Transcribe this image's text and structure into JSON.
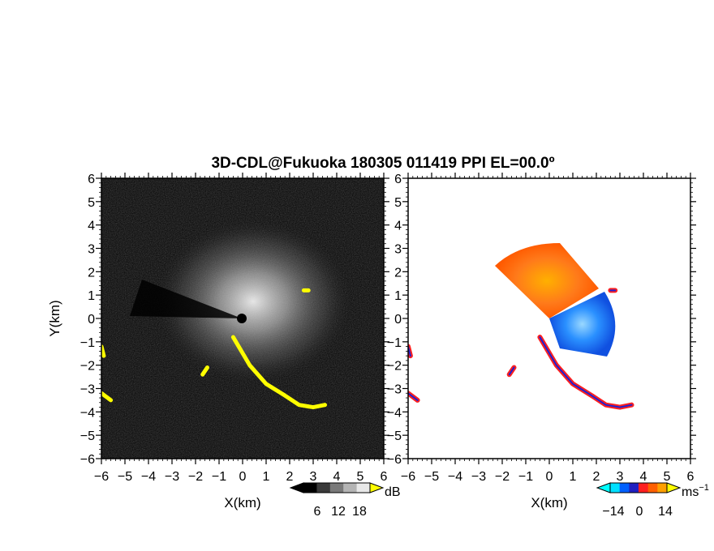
{
  "title": "3D-CDL@Fukuoka 180305 011419 PPI EL=00.0º",
  "chart_data": [
    {
      "type": "heatmap",
      "panel": "left",
      "quantity": "reflectivity",
      "xlabel": "X(km)",
      "ylabel": "Y(km)",
      "xlim": [
        -6,
        6
      ],
      "ylim": [
        -6,
        6
      ],
      "xticks": [
        "−6",
        "−5",
        "−4",
        "−3",
        "−2",
        "−1",
        "0",
        "1",
        "2",
        "3",
        "4",
        "5",
        "6"
      ],
      "yticks": [
        "−6",
        "−5",
        "−4",
        "−3",
        "−2",
        "−1",
        "0",
        "1",
        "2",
        "3",
        "4",
        "5",
        "6"
      ],
      "colorbar": {
        "unit": "dB",
        "tick_labels": [
          "6",
          "12",
          "18"
        ],
        "range": [
          0,
          21
        ],
        "colors": [
          "#000000",
          "#3a3a3a",
          "#7a7a7a",
          "#b4b4b4",
          "#e8e8e8"
        ],
        "over_color": "#ffff00"
      },
      "features": {
        "clutter_color": "#ffff00",
        "clutter_segments_km": [
          [
            [
              -0.4,
              -0.8
            ],
            [
              0.3,
              -2.0
            ],
            [
              1.0,
              -2.8
            ],
            [
              1.8,
              -3.3
            ],
            [
              2.4,
              -3.7
            ],
            [
              3.0,
              -3.8
            ],
            [
              3.5,
              -3.7
            ]
          ],
          [
            [
              -6.0,
              -1.2
            ],
            [
              -5.9,
              -1.6
            ]
          ],
          [
            [
              -6.0,
              -3.2
            ],
            [
              -5.6,
              -3.5
            ]
          ],
          [
            [
              2.6,
              1.2
            ],
            [
              2.8,
              1.2
            ]
          ],
          [
            [
              -1.7,
              -2.4
            ],
            [
              -1.5,
              -2.1
            ]
          ]
        ]
      }
    },
    {
      "type": "heatmap",
      "panel": "right",
      "quantity": "doppler_velocity",
      "xlabel": "X(km)",
      "ylabel": "",
      "xlim": [
        -6,
        6
      ],
      "ylim": [
        -6,
        6
      ],
      "xticks": [
        "−6",
        "−5",
        "−4",
        "−3",
        "−2",
        "−1",
        "0",
        "1",
        "2",
        "3",
        "4",
        "5",
        "6"
      ],
      "yticks": [
        "−6",
        "−5",
        "−4",
        "−3",
        "−2",
        "−1",
        "0",
        "1",
        "2",
        "3",
        "4",
        "5",
        "6"
      ],
      "colorbar": {
        "unit": "ms",
        "unit_exponent": "−1",
        "tick_labels": [
          "−14",
          "0",
          "14"
        ],
        "range": [
          -21,
          21
        ],
        "colors": [
          "#00e0ff",
          "#0060ff",
          "#2020c0",
          "#ff2020",
          "#ff6000",
          "#ffa000"
        ],
        "under_color": "#00ffff",
        "over_color": "#ffff00"
      },
      "features": {
        "positive_color": "#ff7a1a",
        "negative_color": "#1e78ff",
        "clutter_colors": [
          "#ff2020",
          "#2020d0"
        ]
      }
    }
  ]
}
